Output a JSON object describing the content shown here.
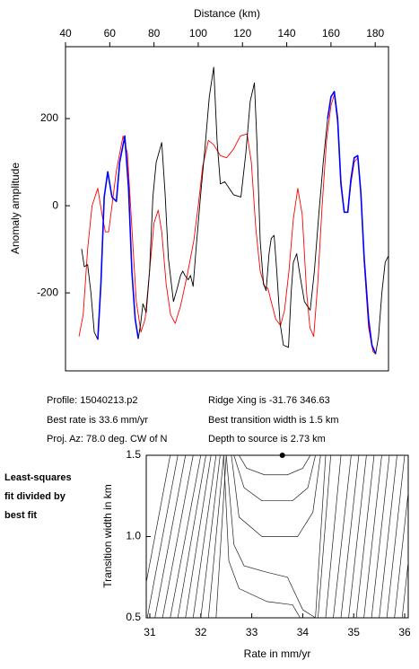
{
  "chart_data": [
    {
      "type": "line",
      "title": "Distance (km)",
      "y_label": "Anomaly amplitude",
      "xlim": [
        40,
        186
      ],
      "xticks": [
        40,
        60,
        80,
        100,
        120,
        140,
        160,
        180
      ],
      "ylim": [
        -379,
        365
      ],
      "yticks": [
        -200,
        0,
        200
      ],
      "series": [
        {
          "color": "#ff0000",
          "x": [
            46.1,
            48,
            50,
            52,
            54.6,
            56.5,
            58,
            59.5,
            61,
            63,
            66,
            68,
            70,
            72,
            74.1,
            76,
            78,
            80,
            81.9,
            83.5,
            85.5,
            87.5,
            89.6,
            92,
            95,
            98,
            100,
            102,
            104.6,
            107,
            110,
            112.8,
            116,
            119,
            122.1,
            124,
            126,
            128,
            130,
            131.5,
            133,
            135,
            137.2,
            139,
            141,
            143,
            145,
            147,
            149,
            150.5,
            152.2,
            154,
            156,
            158,
            160,
            161.5,
            163,
            164.5,
            166,
            167.6,
            169,
            170.5,
            172.1,
            173.5,
            175,
            177,
            179,
            180.2
          ],
          "values": [
            -300,
            -250,
            -100,
            0,
            40,
            -20,
            -60,
            -60,
            0,
            80,
            160,
            120,
            -50,
            -220,
            -290,
            -260,
            -150,
            -40,
            -10,
            -60,
            -180,
            -250,
            -270,
            -230,
            -160,
            -80,
            0,
            90,
            150,
            140,
            115,
            110,
            130,
            160,
            165,
            100,
            -50,
            -150,
            -185,
            -190,
            -220,
            -260,
            -275,
            -240,
            -150,
            -30,
            40,
            -20,
            -200,
            -280,
            -300,
            -180,
            0,
            150,
            230,
            255,
            190,
            60,
            -15,
            -15,
            50,
            100,
            110,
            30,
            -130,
            -280,
            -335,
            -340
          ]
        },
        {
          "color": "#000000",
          "x": [
            47.3,
            48.5,
            50,
            51.5,
            53,
            54.6,
            56,
            57.5,
            59.1,
            61,
            63,
            64.5,
            66.8,
            68.5,
            70,
            71.5,
            72.9,
            74,
            75,
            76.5,
            78,
            79.5,
            81,
            83.5,
            85,
            86.5,
            88.8,
            90.5,
            92,
            93,
            94,
            95.5,
            96.5,
            97.7,
            99,
            101,
            103,
            105,
            107,
            108.5,
            110,
            112,
            114,
            116,
            119.3,
            121.5,
            123.5,
            125.4,
            126.5,
            128,
            129.5,
            130.7,
            132,
            133,
            134.3,
            135.5,
            137,
            138.5,
            140.8,
            142,
            143,
            144.5,
            146,
            148,
            150.6,
            152.5,
            154.5,
            156.5,
            158.5,
            160,
            161.5,
            163,
            164.5,
            166,
            167.6,
            169,
            170.5,
            172.1,
            173.5,
            175,
            177,
            178.5,
            180.2,
            181.5,
            183,
            184.5,
            186
          ],
          "values": [
            -99,
            -140,
            -135,
            -200,
            -290,
            -307,
            -180,
            20,
            78,
            20,
            10,
            100,
            160,
            40,
            -150,
            -260,
            -305,
            -270,
            -225,
            -245,
            -150,
            20,
            100,
            145,
            30,
            -120,
            -220,
            -190,
            -160,
            -150,
            -160,
            -170,
            -160,
            -185,
            -100,
            20,
            130,
            250,
            318,
            150,
            50,
            55,
            40,
            25,
            20,
            120,
            240,
            282,
            150,
            -80,
            -180,
            -195,
            -110,
            -75,
            -68,
            -150,
            -270,
            -320,
            -325,
            -200,
            -130,
            -110,
            -160,
            -220,
            -240,
            -150,
            -20,
            100,
            200,
            250,
            262,
            200,
            50,
            -15,
            -15,
            60,
            110,
            115,
            30,
            -120,
            -260,
            -320,
            -340,
            -300,
            -200,
            -130,
            -115
          ]
        },
        {
          "color": "#0000ff",
          "x": [
            54.6,
            56,
            57.5,
            59.1,
            61,
            63,
            64.5,
            66.8,
            68.5,
            70,
            71.5,
            72.9,
            null,
            158.5,
            160,
            161.5,
            163,
            164.5,
            166,
            167.6,
            169,
            170.5,
            172.1,
            173.5,
            175,
            177,
            178.5,
            180.2
          ],
          "values": [
            -307,
            -180,
            20,
            78,
            20,
            10,
            100,
            160,
            40,
            -150,
            -260,
            -305,
            null,
            200,
            250,
            262,
            200,
            50,
            -15,
            -15,
            60,
            110,
            115,
            30,
            -120,
            -260,
            -320,
            -340
          ]
        }
      ],
      "annotations": [
        "Profile: 15040213.p2",
        "Best rate is 33.6 mm/yr",
        "Proj. Az: 78.0 deg. CW of N",
        "Ridge Xing is -31.76 346.63",
        "Best transition width is 1.5 km",
        "Depth to source is   2.73 km"
      ]
    },
    {
      "type": "contour",
      "x_label": "Rate in mm/yr",
      "y_label": "Transition width in km",
      "xlim": [
        30.93,
        36.07
      ],
      "xticks": [
        31,
        32,
        33,
        34,
        35,
        36
      ],
      "ylim": [
        0.5,
        1.5
      ],
      "yticks": [
        {
          "value": 0.5,
          "label": "0.5"
        },
        {
          "value": 1.0,
          "label": "1.0"
        },
        {
          "value": 1.5,
          "label": "1.5"
        }
      ],
      "annotations": [
        "Least-squares",
        "fit divided by",
        "best fit"
      ],
      "point": {
        "x": 33.6,
        "y": 1.5
      },
      "contours": [
        {
          "x": [
            30.8,
            31.4
          ],
          "y": [
            0.5,
            1.5
          ]
        },
        {
          "x": [
            30.95,
            31.55
          ],
          "y": [
            0.5,
            1.5
          ]
        },
        {
          "x": [
            31.1,
            31.7
          ],
          "y": [
            0.5,
            1.5
          ]
        },
        {
          "x": [
            31.25,
            31.85
          ],
          "y": [
            0.5,
            1.5
          ]
        },
        {
          "x": [
            31.4,
            32.0
          ],
          "y": [
            0.5,
            1.5
          ]
        },
        {
          "x": [
            31.55,
            32.1
          ],
          "y": [
            0.5,
            1.5
          ]
        },
        {
          "x": [
            31.7,
            32.2
          ],
          "y": [
            0.5,
            1.5
          ]
        },
        {
          "x": [
            31.85,
            32.3
          ],
          "y": [
            0.5,
            1.5
          ]
        },
        {
          "x": [
            32.0,
            32.38
          ],
          "y": [
            0.5,
            1.5
          ]
        },
        {
          "x": [
            32.15,
            32.45
          ],
          "y": [
            0.5,
            1.5
          ]
        },
        {
          "x": [
            32.3,
            32.5
          ],
          "y": [
            0.5,
            1.5
          ]
        },
        {
          "x": [
            34.3,
            34.55
          ],
          "y": [
            0.5,
            1.5
          ]
        },
        {
          "x": [
            34.45,
            34.75
          ],
          "y": [
            0.5,
            1.5
          ]
        },
        {
          "x": [
            34.6,
            34.95
          ],
          "y": [
            0.5,
            1.5
          ]
        },
        {
          "x": [
            34.75,
            35.1
          ],
          "y": [
            0.5,
            1.5
          ]
        },
        {
          "x": [
            34.9,
            35.25
          ],
          "y": [
            0.5,
            1.5
          ]
        },
        {
          "x": [
            35.05,
            35.4
          ],
          "y": [
            0.5,
            1.5
          ]
        },
        {
          "x": [
            35.2,
            35.55
          ],
          "y": [
            0.5,
            1.5
          ]
        },
        {
          "x": [
            35.35,
            35.7
          ],
          "y": [
            0.5,
            1.5
          ]
        },
        {
          "x": [
            35.5,
            35.85
          ],
          "y": [
            0.5,
            1.5
          ]
        },
        {
          "x": [
            35.65,
            36.0
          ],
          "y": [
            0.5,
            1.5
          ]
        },
        {
          "x": [
            35.8,
            36.15
          ],
          "y": [
            0.5,
            1.5
          ]
        },
        {
          "x": [
            35.95,
            36.3
          ],
          "y": [
            0.5,
            1.5
          ]
        },
        {
          "x": [
            32.75,
            32.9,
            33.25,
            33.7,
            34.0,
            34.15
          ],
          "y": [
            1.5,
            1.42,
            1.38,
            1.38,
            1.42,
            1.5
          ]
        },
        {
          "x": [
            32.65,
            32.85,
            33.2,
            33.8,
            34.1,
            34.25
          ],
          "y": [
            1.5,
            1.3,
            1.22,
            1.22,
            1.3,
            1.5
          ]
        },
        {
          "x": [
            32.6,
            32.75,
            33.2,
            33.9,
            34.2,
            34.35
          ],
          "y": [
            1.5,
            1.12,
            1.0,
            1.0,
            1.15,
            1.5
          ]
        },
        {
          "x": [
            32.5,
            32.65,
            32.85,
            33.3,
            33.7,
            34.0,
            34.25,
            34.45
          ],
          "y": [
            1.5,
            0.95,
            0.82,
            0.78,
            0.75,
            0.55,
            0.5,
            1.5
          ]
        },
        {
          "x": [
            32.45,
            32.55,
            32.75,
            33.3,
            33.8,
            33.95
          ],
          "y": [
            1.5,
            0.85,
            0.68,
            0.6,
            0.58,
            0.5
          ]
        }
      ]
    }
  ]
}
